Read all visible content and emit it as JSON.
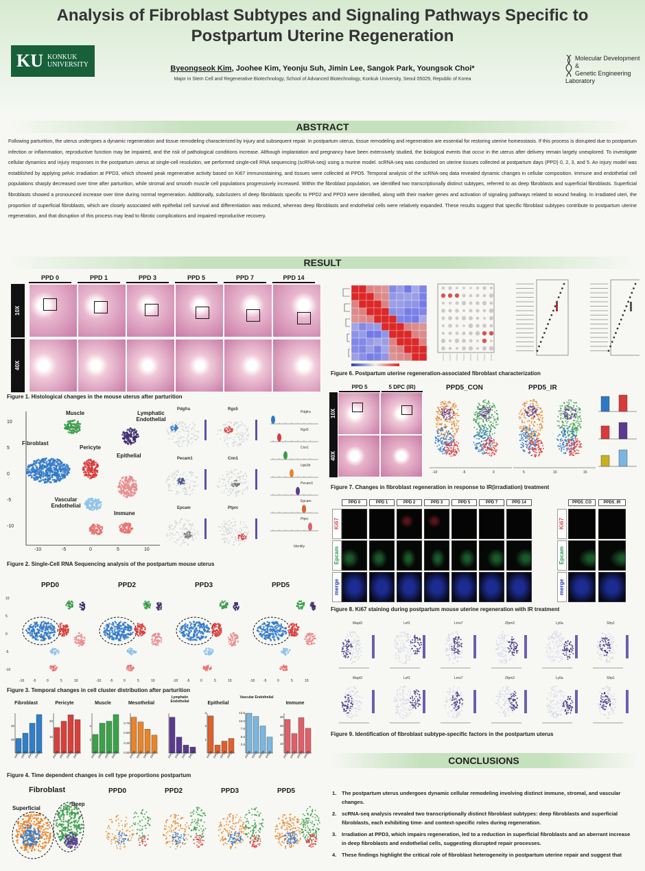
{
  "title": "Analysis of Fibroblast Subtypes and Signaling Pathways Specific to Postpartum Uterine Regeneration",
  "logo_left": {
    "mark": "KU",
    "name_line1": "KONKUK",
    "name_line2": "UNIVERSITY"
  },
  "logo_right": {
    "line1": "Molecular Development &",
    "line2": "Genetic Engineering",
    "line3": "Laboratory"
  },
  "authors": {
    "presenter": "Byeongseok Kim",
    "others": ", Joohee Kim, Yeonju Suh, Jimin Lee, Sangok Park, Youngsok Choi*"
  },
  "affiliation": "Major in Stem Cell and Regenerative Biotechnology, School of Advanced Biotechnology, Konkuk University, Seoul 05029, Republic of Korea",
  "abstract": {
    "heading": "ABSTRACT",
    "text": "Following parturition, the uterus undergoes a dynamic regeneration and tissue remodeling characterized by injury and subsequent repair. In postpartum uterus, tissue remodeling and regeneration are essential for restoring uterine homeostasis. If this process is disrupted due to postpartum infection or inflammation, reproductive function may be impaired, and the risk of pathological conditions increase. Although implantation and pregnancy have been extensively studied, the biological events that occur in the uterus after delivery remain largely unexplored. To investigate cellular dynamics and injury responses in the postpartum uterus at single-cell resolution, we performed single-cell RNA sequencing (scRNA-seq) using a murine model. scRNA-seq was conducted on uterine tissues collected at postpartum days (PPD) 0, 2, 3, and 5. An injury model was established by applying pelvic irradiation at PPD3, which showed peak regenerative activity based on Ki67 immunostaining, and tissues were collected at PPD5. Temporal analysis of the scRNA-seq data revealed dynamic changes in cellular composition. Immune and endothelial cell populations sharply decreased over time after parturition, while stromal and smooth muscle cell populations progressively increased. Within the fibroblast population, we identified two transcriptionally distinct subtypes, referred to as deep fibroblasts and superficial fibroblasts. Superficial fibroblasts showed a pronounced increase over time during normal regeneration. Additionally, subclusters of deep fibroblasts specific to PPD2 and PPD3 were identified, along with their marker genes and activation of signaling pathways related to wound healing. In irradiated uteri, the proportion of superficial fibroblasts, which are closely associated with epithelial cell survival and differentiation was reduced, whereas deep fibroblasts and endothelial cells were relatively expanded. These results suggest that specific fibroblast subtypes contribute to postpartum uterine regeneration, and that disruption of this process may lead to fibrotic complications and impaired reproductive recovery."
  },
  "result_heading": "RESULT",
  "fig1": {
    "days": [
      "PPD 0",
      "PPD 1",
      "PPD 3",
      "PPD 5",
      "PPD 7",
      "PPD 14"
    ],
    "rows": [
      "10X",
      "40X"
    ],
    "caption": "Figure 1. Histological changes in the mouse uterus after parturition"
  },
  "fig2": {
    "clusters": [
      "Muscle",
      "Lymphatic Endothelial",
      "Fibroblast",
      "Pericyte",
      "Epithelial",
      "Vascular Endothelial",
      "Immune"
    ],
    "y_ticks": [
      "10",
      "5",
      "0",
      "-5",
      "-10"
    ],
    "x_ticks": [
      "-10",
      "-5",
      "0",
      "5",
      "10"
    ],
    "feature_genes": [
      "Pdgfra",
      "Rgs5",
      "Pecam1",
      "Cnn1",
      "Epcam",
      "Ptprc"
    ],
    "violin_genes": [
      "Pdgfra",
      "Rgs5",
      "Cnn1",
      "Upk3b",
      "Pecam1",
      "Epcam",
      "Ptprc"
    ],
    "violin_axis_label": "Identity",
    "caption": "Figure 2. Single-Cell RNA Sequencing analysis of the postpartum mouse uterus"
  },
  "fig3": {
    "panels": [
      "PPD0",
      "PPD2",
      "PPD3",
      "PPD5"
    ],
    "y_ticks": [
      "10",
      "5",
      "0",
      "-5",
      "-10"
    ],
    "x_ticks": [
      "-10",
      "-5",
      "0",
      "5",
      "10"
    ],
    "caption": "Figure 3. Temporal changes in cell cluster distribution after parturition"
  },
  "fig4": {
    "caption": "Figure 4. Time dependent changes in cell type proportions postpartum",
    "x_categories": [
      "PPD0",
      "PPD2",
      "PPD3",
      "PPD5"
    ],
    "chart_data": [
      {
        "type": "bar",
        "title": "Fibroblast",
        "categories": [
          "PPD0",
          "PPD2",
          "PPD3",
          "PPD5"
        ],
        "values": [
          22,
          30,
          45,
          58
        ],
        "ylim": [
          0,
          60
        ],
        "y_ticks": [
          "20",
          "40"
        ],
        "color": "#2f7fc9"
      },
      {
        "type": "bar",
        "title": "Pericyte",
        "categories": [
          "PPD0",
          "PPD2",
          "PPD3",
          "PPD5"
        ],
        "values": [
          16,
          20,
          24,
          21
        ],
        "ylim": [
          0,
          25
        ],
        "y_ticks": [
          "10",
          "20"
        ],
        "color": "#d9403a"
      },
      {
        "type": "bar",
        "title": "Muscle",
        "categories": [
          "PPD0",
          "PPD2",
          "PPD3",
          "PPD5"
        ],
        "values": [
          2.8,
          4.5,
          4.8,
          5.8
        ],
        "ylim": [
          0,
          6
        ],
        "y_ticks": [
          "2",
          "4"
        ],
        "color": "#3aa34a"
      },
      {
        "type": "bar",
        "title": "Mesothelial",
        "categories": [
          "PPD0",
          "PPD2",
          "PPD3",
          "PPD5"
        ],
        "values": [
          0.9,
          0.78,
          0.6,
          0.45
        ],
        "ylim": [
          0,
          1.0
        ],
        "y_ticks": [
          "0.00",
          "0.25",
          "0.50",
          "0.75"
        ],
        "color": "#e8842a"
      },
      {
        "type": "bar",
        "title": "Lymphatic Endothelial",
        "categories": [
          "PPD0",
          "PPD2",
          "PPD3",
          "PPD5"
        ],
        "values": [
          0.9,
          0.4,
          0.2,
          0.15
        ],
        "ylim": [
          0,
          1.0
        ],
        "y_ticks": [],
        "color": "#5b3a8f"
      },
      {
        "type": "bar",
        "title": "Epithelial",
        "categories": [
          "PPD0",
          "PPD2",
          "PPD3",
          "PPD5"
        ],
        "values": [
          2.8,
          0.6,
          0.9,
          1.1
        ],
        "ylim": [
          0,
          3
        ],
        "y_ticks": [
          "1",
          "2",
          "3"
        ],
        "color": "#e0602c"
      },
      {
        "type": "bar",
        "title": "Vascular Endothelial",
        "categories": [
          "PPD0",
          "PPD2",
          "PPD3",
          "PPD5"
        ],
        "values": [
          12.5,
          11.5,
          8.5,
          5
        ],
        "ylim": [
          0,
          12.5
        ],
        "y_ticks": [
          "2.5",
          "5.0",
          "7.5",
          "10.0",
          "12.5"
        ],
        "color": "#7ab7e0"
      },
      {
        "type": "bar",
        "title": "Immune",
        "categories": [
          "PPD0",
          "PPD2",
          "PPD3",
          "PPD5"
        ],
        "values": [
          38,
          22,
          40,
          28
        ],
        "ylim": [
          0,
          45
        ],
        "y_ticks": [
          "10",
          "20",
          "30",
          "40"
        ],
        "color": "#e0606a"
      }
    ]
  },
  "fig5": {
    "fibroblast_title": "Fibroblast",
    "labels": [
      "Superficial",
      "Deep"
    ],
    "panels": [
      "PPD0",
      "PPD2",
      "PPD3",
      "PPD5"
    ]
  },
  "fig6": {
    "caption": "Figure 6. Postpartum uterine regeneration-associated fibroblast characterization"
  },
  "fig7": {
    "histo_cols": [
      "PPD 5",
      "5 DPC (IR)"
    ],
    "rows": [
      "10X",
      "40X"
    ],
    "umap_titles": [
      "PPD5_CON",
      "PPD5_IR"
    ],
    "x_ticks": [
      "-10",
      "-5",
      "0",
      "5",
      "10",
      "15"
    ],
    "caption": "Figure 7. Changes in fibroblast regeneration in response to IR(irradiation) treatment"
  },
  "fig8": {
    "cols": [
      "PPD 0",
      "PPD 1",
      "PPD 2",
      "PPD 3",
      "PPD 5",
      "PPD 7",
      "PPD 14"
    ],
    "ir_cols": [
      "PPD5_CO",
      "PPD5_IR"
    ],
    "rows": [
      "Ki67",
      "Epcam",
      "merge"
    ],
    "caption": "Figure 8. Ki67 staining during postpartum mouse uterine regeneration with IR treatment"
  },
  "fig9": {
    "genes_row1": [
      "Mapt3",
      "Lef1",
      "Lmo7",
      "Zfpm2",
      "Ly6a",
      "Sfrp1"
    ],
    "genes_row2": [
      "Mapt3",
      "Lef1",
      "Lmo7",
      "Zfpm2",
      "Ly6a",
      "Sfrp1"
    ],
    "caption": "Figure 9. Identification of fibroblast subtype-specific factors in the postpartum uterus"
  },
  "conclusions": {
    "heading": "CONCLUSIONS",
    "items": [
      "The postpartum uterus undergoes dynamic cellular remodeling involving distinct immune, stromal, and vascular changes.",
      "scRNA-seq analysis revealed two transcriptionally distinct fibroblast subtypes: deep fibroblasts and superficial fibroblasts, each exhibiting time- and context-specific roles during regeneration.",
      "Irradiation at PPD3, which impairs regeneration, led to a reduction in superficial fibroblasts and an aberrant increase in deep fibroblasts and endothelial cells, suggesting disrupted repair processes.",
      "These findings highlight the critical role of fibroblast heterogeneity in postpartum uterine repair and suggest that"
    ]
  },
  "colors": {
    "accent_green": "#c5e1bd",
    "ku_green": "#17603a"
  }
}
